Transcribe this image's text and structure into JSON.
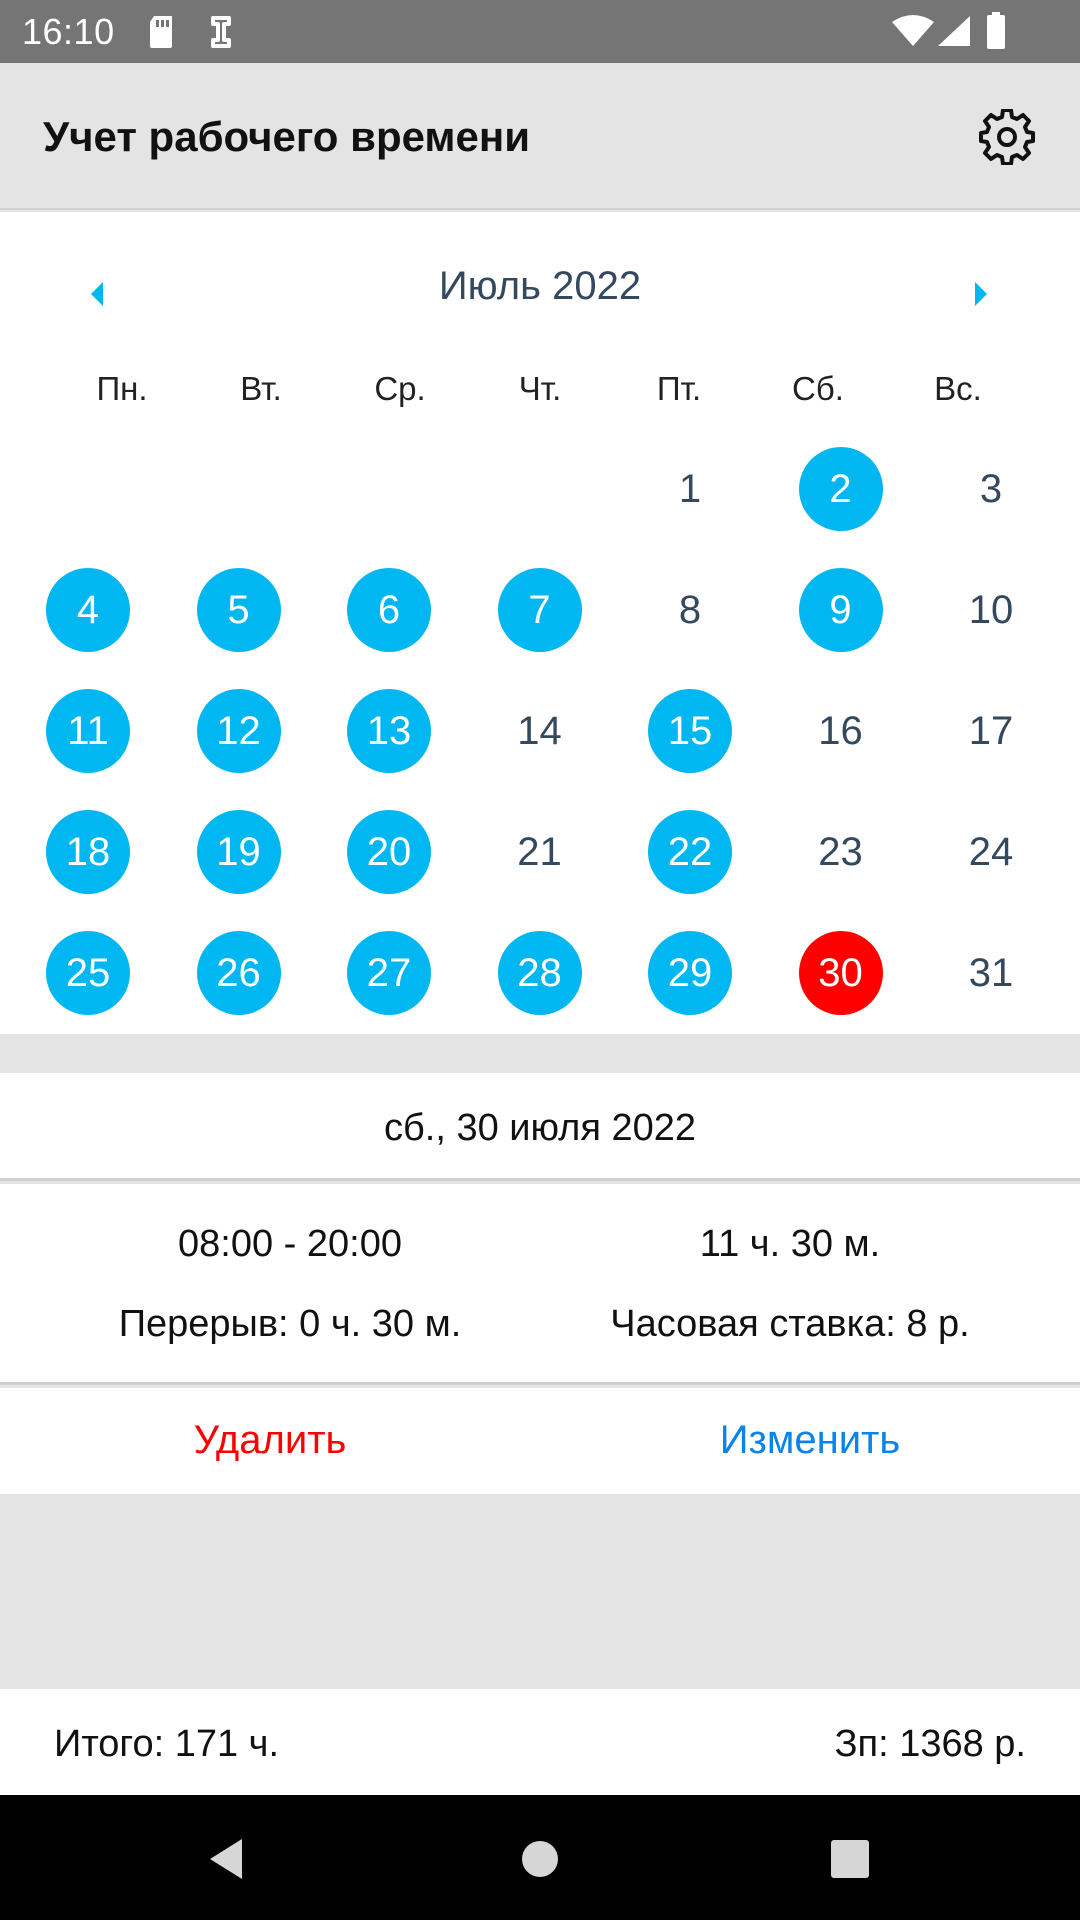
{
  "status_bar": {
    "time": "16:10",
    "icons": [
      "sd-card-icon",
      "tool-icon",
      "wifi-icon",
      "signal-icon",
      "battery-icon"
    ]
  },
  "app_bar": {
    "title": "Учет рабочего времени",
    "settings_icon": "gear-icon"
  },
  "calendar": {
    "month_title": "Июль 2022",
    "prev_icon": "arrow-left-icon",
    "next_icon": "arrow-right-icon",
    "weekdays": [
      "Пн.",
      "Вт.",
      "Ср.",
      "Чт.",
      "Пт.",
      "Сб.",
      "Вс."
    ],
    "first_weekday_offset": 4,
    "days": [
      "1",
      "2",
      "3",
      "4",
      "5",
      "6",
      "7",
      "8",
      "9",
      "10",
      "11",
      "12",
      "13",
      "14",
      "15",
      "16",
      "17",
      "18",
      "19",
      "20",
      "21",
      "22",
      "23",
      "24",
      "25",
      "26",
      "27",
      "28",
      "29",
      "30",
      "31"
    ],
    "marked_days": [
      2,
      4,
      5,
      6,
      7,
      9,
      11,
      12,
      13,
      15,
      18,
      19,
      20,
      22,
      25,
      26,
      27,
      28,
      29
    ],
    "selected_day": 30,
    "colors": {
      "marked": "#00b7f1",
      "selected": "#ff0000",
      "day_text": "#34495e",
      "nav_arrow": "#00b7f1"
    }
  },
  "details": {
    "date": "сб., 30 июля 2022",
    "time_range": "08:00 - 20:00",
    "duration": "11 ч. 30 м.",
    "break": "Перерыв: 0 ч. 30 м.",
    "rate": "Часовая ставка: 8 р."
  },
  "actions": {
    "delete_label": "Удалить",
    "edit_label": "Изменить",
    "delete_color": "#ff0000",
    "edit_color": "#0a84e8"
  },
  "totals": {
    "hours": "Итого: 171 ч.",
    "pay": "Зп: 1368 р."
  },
  "nav_bar": {
    "icons": [
      "back-icon",
      "home-icon",
      "recents-icon"
    ]
  }
}
